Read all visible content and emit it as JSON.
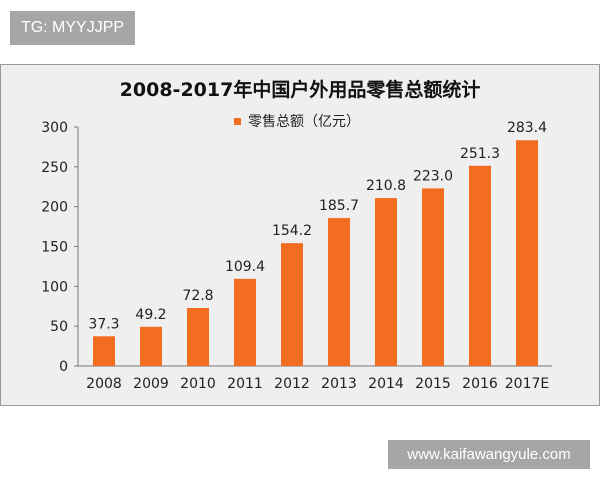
{
  "overlay_tag": "TG: MYYJJPP",
  "site_watermark": "www.kaifawangyule.com",
  "chart_data": {
    "type": "bar",
    "title": "2008-2017年中国户外用品零售总额统计",
    "categories": [
      "2008",
      "2009",
      "2010",
      "2011",
      "2012",
      "2013",
      "2014",
      "2015",
      "2016",
      "2017E"
    ],
    "series": [
      {
        "name": "零售总额（亿元）",
        "values": [
          37.3,
          49.2,
          72.8,
          109.4,
          154.2,
          185.7,
          210.8,
          223.0,
          251.3,
          283.4
        ]
      }
    ],
    "data_labels": [
      "37.3",
      "49.2",
      "72.8",
      "109.4",
      "154.2",
      "185.7",
      "210.8",
      "223.0",
      "251.3",
      "283.4"
    ],
    "yticks": [
      0,
      50,
      100,
      150,
      200,
      250,
      300
    ],
    "ylim": [
      0,
      300
    ],
    "grid": false,
    "legend_placement": "top",
    "bar_color": "#f36d21"
  }
}
